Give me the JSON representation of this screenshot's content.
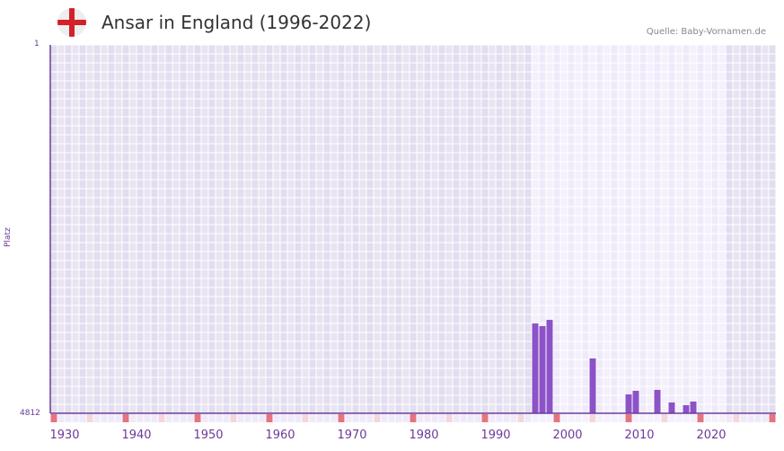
{
  "header": {
    "title": "Ansar in England (1996-2022)",
    "source": "Quelle: Baby-Vornamen.de",
    "flag_icon": "england-flag-icon"
  },
  "colors": {
    "bar": "#8c52c8",
    "axis": "#6a3a9a",
    "decade_marker": "#e57480",
    "half_decade_marker": "#f5d6de",
    "grid_dark": "#e4e0ee",
    "grid_light": "#efeaf9",
    "highlight_bg": "#f4f0fc"
  },
  "chart_data": {
    "type": "bar",
    "title": "Ansar in England (1996-2022)",
    "xlabel": "",
    "ylabel": "Platz",
    "y_inverted": true,
    "ylim": [
      1,
      4812
    ],
    "xlim": [
      1928,
      2028
    ],
    "x_ticks": [
      1930,
      1940,
      1950,
      1960,
      1970,
      1980,
      1990,
      2000,
      2010,
      2020
    ],
    "y_ticks": [
      1,
      4812
    ],
    "highlight_range": [
      1995,
      2021
    ],
    "grid": true,
    "categories": [
      1995,
      1996,
      1997,
      2003,
      2008,
      2009,
      2012,
      2014,
      2016,
      2017
    ],
    "values": [
      3639,
      3674,
      3592,
      4096,
      4566,
      4519,
      4507,
      4671,
      4706,
      4659
    ]
  },
  "axis": {
    "y_top_label": "1",
    "y_bottom_label": "4812",
    "y_title": "Platz",
    "x_labels": [
      "1930",
      "1940",
      "1950",
      "1960",
      "1970",
      "1980",
      "1990",
      "2000",
      "2010",
      "2020"
    ]
  }
}
